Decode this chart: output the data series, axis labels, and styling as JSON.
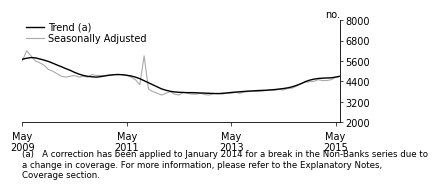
{
  "ylabel_right": "no.",
  "ylim": [
    2000,
    8000
  ],
  "yticks": [
    2000,
    3200,
    4400,
    5600,
    6800,
    8000
  ],
  "xtick_labels": [
    "May\n2009",
    "May\n2011",
    "May\n2013",
    "May\n2015"
  ],
  "xtick_positions": [
    0,
    24,
    48,
    72
  ],
  "footnote": "(a)   A correction has been applied to January 2014 for a break in the Non-Banks series due to\na change in coverage. For more information, please refer to the Explanatory Notes,\nCoverage section.",
  "legend_entries": [
    "Trend (a)",
    "Seasonally Adjusted"
  ],
  "legend_colors": [
    "#000000",
    "#aaaaaa"
  ],
  "trend_color": "#000000",
  "seasonal_color": "#aaaaaa",
  "trend_data": [
    5700,
    5760,
    5800,
    5780,
    5720,
    5650,
    5570,
    5470,
    5360,
    5260,
    5150,
    5050,
    4930,
    4830,
    4750,
    4700,
    4670,
    4650,
    4680,
    4720,
    4760,
    4790,
    4800,
    4790,
    4760,
    4720,
    4650,
    4560,
    4440,
    4320,
    4200,
    4080,
    3960,
    3880,
    3820,
    3780,
    3760,
    3750,
    3740,
    3740,
    3730,
    3720,
    3710,
    3700,
    3690,
    3680,
    3700,
    3720,
    3750,
    3770,
    3790,
    3810,
    3830,
    3840,
    3860,
    3870,
    3880,
    3900,
    3920,
    3950,
    3980,
    4020,
    4080,
    4160,
    4260,
    4380,
    4470,
    4530,
    4570,
    4590,
    4600,
    4610,
    4650,
    4700
  ],
  "seasonal_data": [
    5600,
    6200,
    5900,
    5600,
    5500,
    5350,
    5100,
    5000,
    4850,
    4700,
    4650,
    4700,
    4750,
    4650,
    4700,
    4650,
    4800,
    4750,
    4750,
    4750,
    4780,
    4800,
    4820,
    4800,
    4750,
    4650,
    4500,
    4200,
    5900,
    3950,
    3800,
    3700,
    3600,
    3700,
    3800,
    3650,
    3600,
    3750,
    3700,
    3650,
    3650,
    3700,
    3620,
    3600,
    3680,
    3700,
    3650,
    3720,
    3700,
    3760,
    3700,
    3780,
    3800,
    3820,
    3800,
    3820,
    3860,
    3880,
    3880,
    3920,
    3900,
    3980,
    4000,
    4120,
    4250,
    4350,
    4380,
    4400,
    4500,
    4450,
    4450,
    4500,
    4650,
    4700
  ],
  "n_months": 74,
  "background_color": "#ffffff",
  "font_size": 7.0,
  "footnote_font_size": 6.2
}
